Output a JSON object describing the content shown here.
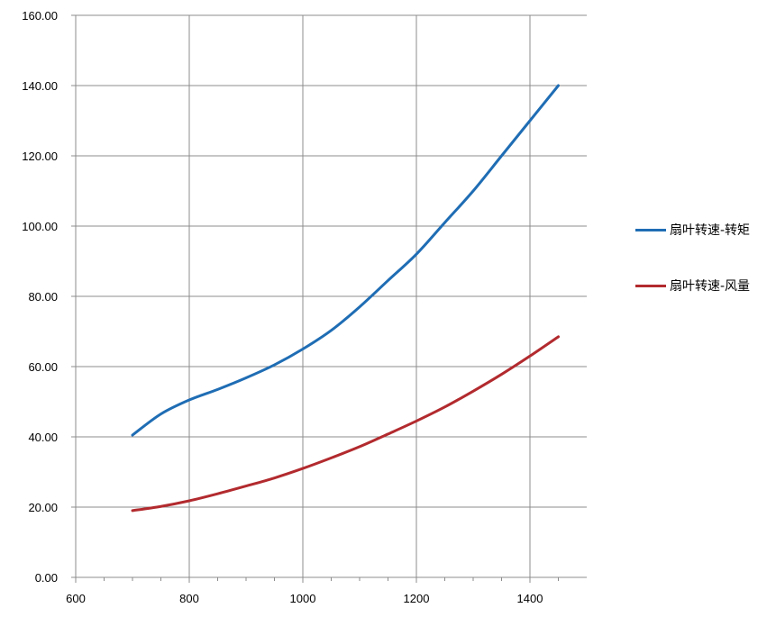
{
  "chart_data": {
    "type": "line",
    "title": "",
    "xlabel": "",
    "ylabel": "",
    "xlim": [
      600,
      1500
    ],
    "ylim": [
      0,
      160
    ],
    "x_ticks": [
      "600",
      "800",
      "1000",
      "1200",
      "1400"
    ],
    "y_ticks": [
      "0.00",
      "20.00",
      "40.00",
      "60.00",
      "80.00",
      "100.00",
      "120.00",
      "140.00",
      "160.00"
    ],
    "grid": true,
    "legend_position": "right",
    "series": [
      {
        "name": "扇叶转速-转矩",
        "color": "#1f6db4",
        "x": [
          700,
          750,
          800,
          850,
          900,
          950,
          1000,
          1050,
          1100,
          1150,
          1200,
          1250,
          1300,
          1350,
          1400,
          1450
        ],
        "y": [
          40.5,
          46.5,
          50.5,
          53.5,
          56.8,
          60.5,
          65.0,
          70.3,
          77.0,
          84.5,
          92.0,
          101.0,
          110.0,
          120.0,
          130.0,
          140.0
        ]
      },
      {
        "name": "扇叶转速-风量",
        "color": "#b22a2e",
        "x": [
          700,
          750,
          800,
          850,
          900,
          950,
          1000,
          1050,
          1100,
          1150,
          1200,
          1250,
          1300,
          1350,
          1400,
          1450
        ],
        "y": [
          19.0,
          20.2,
          21.8,
          23.8,
          26.0,
          28.3,
          31.0,
          34.0,
          37.2,
          40.8,
          44.5,
          48.5,
          53.0,
          57.8,
          63.0,
          68.5
        ]
      }
    ]
  }
}
